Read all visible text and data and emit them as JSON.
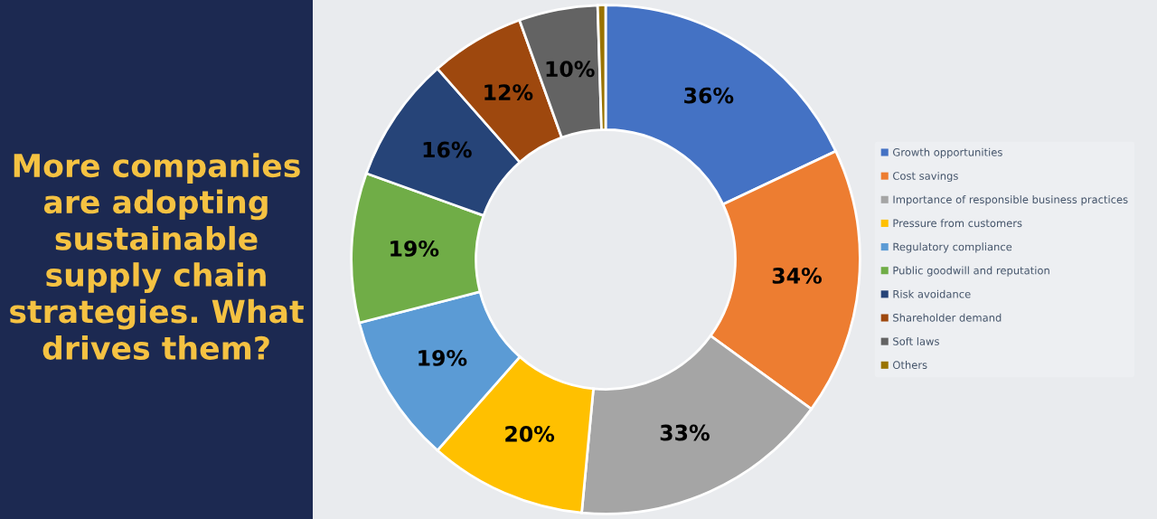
{
  "chart_data": {
    "type": "donut",
    "title": "More companies are adopting sustainable supply chain strategies. What drives them?",
    "categories": [
      "Growth opportunities",
      "Cost savings",
      "Importance of responsible business practices",
      "Pressure from customers",
      "Regulatory compliance",
      "Public goodwill and reputation",
      "Risk avoidance",
      "Shareholder demand",
      "Soft laws",
      "Others"
    ],
    "values": [
      36,
      34,
      33,
      20,
      19,
      19,
      16,
      12,
      10,
      1
    ],
    "value_labels": [
      "36%",
      "34%",
      "33%",
      "20%",
      "19%",
      "19%",
      "16%",
      "12%",
      "10%",
      null
    ],
    "colors": [
      "#4472c4",
      "#ed7d31",
      "#a5a5a5",
      "#ffc000",
      "#5b9bd5",
      "#70ad47",
      "#264478",
      "#9e480e",
      "#636363",
      "#997300"
    ],
    "legend": "right"
  }
}
